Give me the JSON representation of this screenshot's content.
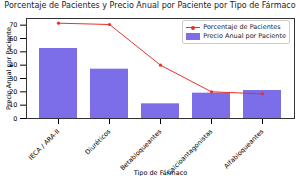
{
  "chart_data": {
    "type": "bar",
    "title": "Porcentaje de Pacientes y Precio Anual por Paciente por Tipo de Fármaco",
    "xlabel": "Tipo de Fármaco",
    "ylabel": "Precio Anual por Paciente",
    "categories": [
      "IECA / ARA-II",
      "Diuréticos",
      "Betabloqueantes",
      "Calcioantagonistas",
      "Alfabloqueantes"
    ],
    "series": [
      {
        "name": "Porcentaje de Pacientes",
        "type": "line",
        "color": "#e8302a",
        "marker": "o",
        "values": [
          71.5,
          70.5,
          40,
          20,
          18.5
        ]
      },
      {
        "name": "Precio Anual por Paciente",
        "type": "bar",
        "color": "#7b6ee8",
        "values": [
          52.5,
          37,
          11,
          19,
          21
        ]
      }
    ],
    "ylim": [
      0,
      75
    ],
    "yticks": [
      0,
      10,
      20,
      30,
      40,
      50,
      60,
      70
    ],
    "legend": "upper right"
  }
}
